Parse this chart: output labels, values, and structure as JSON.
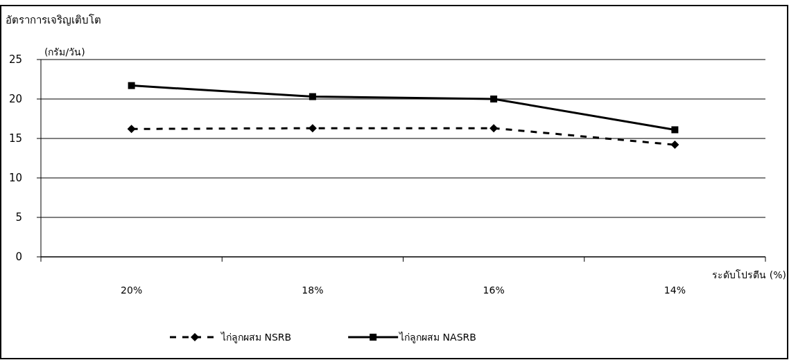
{
  "chart_data": {
    "type": "line",
    "ylabel": "อัตราการเจริญเติบโต",
    "xlabel": "ระดับโปรตีน (%)",
    "annotations": [
      "(กรัม/วัน)"
    ],
    "categories": [
      "20%",
      "18%",
      "16%",
      "14%"
    ],
    "series": [
      {
        "name": "ไก่ลูกผสม NSRB",
        "color": "#000000",
        "marker": "diamond",
        "line_style": "dashed",
        "values": [
          16.2,
          16.3,
          16.3,
          14.2
        ]
      },
      {
        "name": "ไก่ลูกผสม NASRB",
        "color": "#000000",
        "marker": "square",
        "line_style": "solid",
        "values": [
          21.7,
          20.3,
          20.0,
          16.1
        ]
      }
    ],
    "ylim": [
      0,
      25
    ],
    "yticks": [
      0,
      5,
      10,
      15,
      20,
      25
    ],
    "grid": "y",
    "legend": "bottom"
  }
}
